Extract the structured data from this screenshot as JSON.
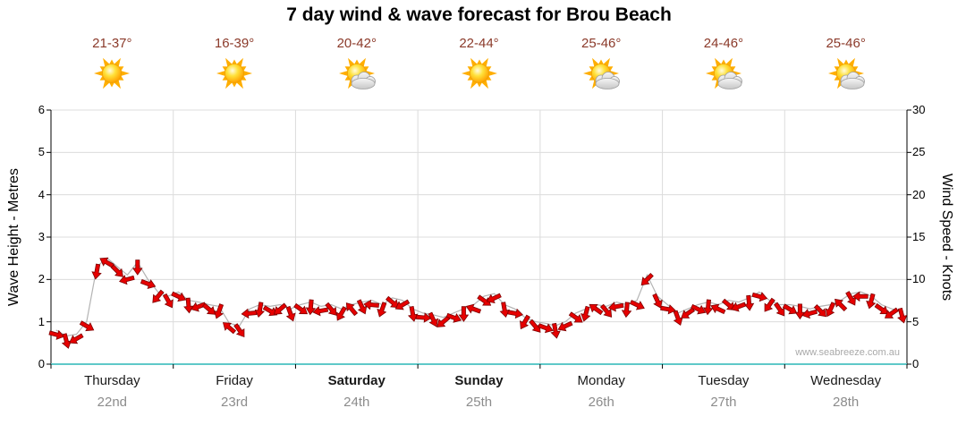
{
  "title": "7 day wind & wave forecast for Brou Beach",
  "watermark": "www.seabreeze.com.au",
  "colors": {
    "arrow_fill": "#e60000",
    "arrow_stroke": "#7d0000",
    "trace_line": "#b3b3b3",
    "baseline_teal": "#5fc9c9",
    "grid": "#dcdcdc",
    "axis": "#000000",
    "temp_text": "#8b3a2a",
    "day_text": "#1a1a1a",
    "date_text": "#8c8c8c"
  },
  "days": [
    {
      "name": "Thursday",
      "date": "22nd",
      "temp": "21-37°",
      "icon": "sunny",
      "bold": false
    },
    {
      "name": "Friday",
      "date": "23rd",
      "temp": "16-39°",
      "icon": "sunny",
      "bold": false
    },
    {
      "name": "Saturday",
      "date": "24th",
      "temp": "20-42°",
      "icon": "partly-cloudy",
      "bold": true
    },
    {
      "name": "Sunday",
      "date": "25th",
      "temp": "22-44°",
      "icon": "sunny",
      "bold": true
    },
    {
      "name": "Monday",
      "date": "26th",
      "temp": "25-46°",
      "icon": "partly-cloudy",
      "bold": false
    },
    {
      "name": "Tuesday",
      "date": "27th",
      "temp": "24-46°",
      "icon": "partly-cloudy",
      "bold": false
    },
    {
      "name": "Wednesday",
      "date": "28th",
      "temp": "25-46°",
      "icon": "partly-cloudy",
      "bold": false
    }
  ],
  "chart_data": {
    "type": "line",
    "title": "7 day wind & wave forecast for Brou Beach",
    "categories": [
      "Thursday 22nd",
      "Friday 23rd",
      "Saturday 24th",
      "Sunday 25th",
      "Monday 26th",
      "Tuesday 27th",
      "Wednesday 28th"
    ],
    "points_per_day": 12,
    "left_axis": {
      "label": "Wave Height - Metres",
      "range": [
        0,
        6
      ],
      "ticks": [
        0,
        1,
        2,
        3,
        4,
        5,
        6
      ]
    },
    "right_axis": {
      "label": "Wind Speed - Knots",
      "range": [
        0,
        30
      ],
      "ticks": [
        0,
        5,
        10,
        15,
        20,
        25,
        30
      ]
    },
    "grid": "on",
    "legend": "none",
    "series": [
      {
        "name": "Wind speed (knots, red wind arrows)",
        "axis": "right",
        "values": [
          3.5,
          2.8,
          3,
          4.5,
          11,
          12,
          11,
          10,
          11.5,
          9.5,
          8,
          7.5,
          8,
          7,
          6.8,
          6.5,
          6.3,
          4.3,
          4,
          6,
          6.5,
          6.3,
          6.5,
          6,
          6.5,
          6.8,
          6.3,
          6.5,
          6,
          6.5,
          6.8,
          7,
          6.5,
          7.3,
          7,
          6,
          5.5,
          5.3,
          5,
          5.5,
          6,
          6.5,
          7.5,
          7.8,
          6.5,
          6,
          5,
          4.5,
          4.3,
          4,
          4.5,
          5.5,
          6,
          6.5,
          6.3,
          6.8,
          6.5,
          7,
          10,
          7.5,
          6.5,
          5.5,
          6,
          6.5,
          6.8,
          6.5,
          7,
          6.8,
          7.3,
          8,
          7,
          6.5,
          6.5,
          6.3,
          6,
          6.3,
          6.5,
          7,
          7.8,
          8,
          7.5,
          6.5,
          6,
          5.8
        ],
        "directions_deg": [
          15,
          75,
          150,
          30,
          100,
          210,
          45,
          165,
          90,
          20,
          130,
          60,
          25,
          85,
          160,
          40,
          110,
          220,
          55,
          175,
          100,
          30,
          140,
          70,
          35,
          95,
          170,
          50,
          120,
          230,
          65,
          185,
          110,
          40,
          150,
          80,
          5,
          65,
          140,
          20,
          90,
          200,
          35,
          155,
          80,
          10,
          120,
          50,
          20,
          80,
          155,
          35,
          105,
          215,
          50,
          170,
          95,
          25,
          135,
          65,
          10,
          70,
          145,
          25,
          95,
          205,
          40,
          160,
          85,
          15,
          125,
          55,
          30,
          90,
          165,
          45,
          115,
          225,
          60,
          180,
          105,
          35,
          145,
          75
        ]
      }
    ]
  }
}
